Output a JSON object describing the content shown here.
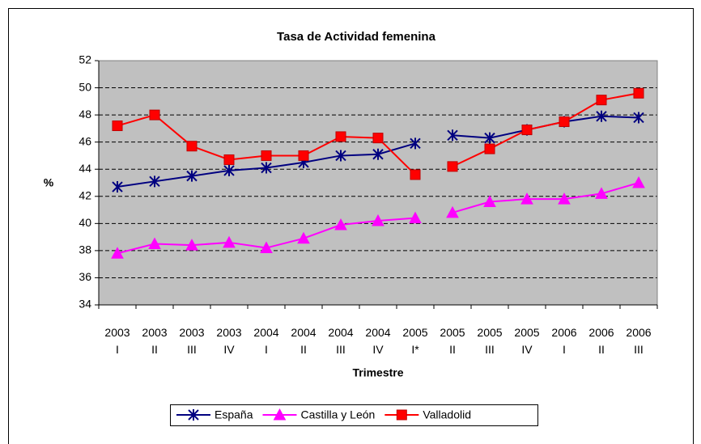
{
  "chart_data": {
    "type": "line",
    "title": "Tasa de Actividad femenina",
    "x_label": "Trimestre",
    "y_label": "%",
    "categories": [
      "2003\nI",
      "2003\nII",
      "2003\nIII",
      "2003\nIV",
      "2004\nI",
      "2004\nII",
      "2004\nIII",
      "2004\nIV",
      "2005\nI*",
      "2005\nII",
      "2005\nIII",
      "2005\nIV",
      "2006\nI",
      "2006\nII",
      "2006\nIII"
    ],
    "break_before": 9,
    "series": [
      {
        "name": "España",
        "color": "#000080",
        "marker": "star",
        "values": [
          42.7,
          43.1,
          43.5,
          43.9,
          44.1,
          44.5,
          45.0,
          45.1,
          45.9,
          46.5,
          46.3,
          46.9,
          47.5,
          47.9,
          47.8
        ]
      },
      {
        "name": "Castilla y León",
        "color": "#ff00ff",
        "marker": "triangle",
        "values": [
          37.8,
          38.5,
          38.4,
          38.6,
          38.2,
          38.9,
          39.9,
          40.2,
          40.4,
          40.8,
          41.6,
          41.8,
          41.8,
          42.2,
          43.0
        ]
      },
      {
        "name": "Valladolid",
        "color": "#ff0000",
        "marker": "square",
        "values": [
          47.2,
          48.0,
          45.7,
          44.7,
          45.0,
          45.0,
          46.4,
          46.3,
          43.6,
          44.2,
          45.5,
          46.9,
          47.5,
          49.1,
          49.6
        ]
      }
    ],
    "ylim": [
      34,
      52
    ],
    "yticks": [
      34,
      36,
      38,
      40,
      42,
      44,
      46,
      48,
      50,
      52
    ],
    "grid": true,
    "plot_background": "#c0c0c0",
    "legend": "bottom"
  }
}
